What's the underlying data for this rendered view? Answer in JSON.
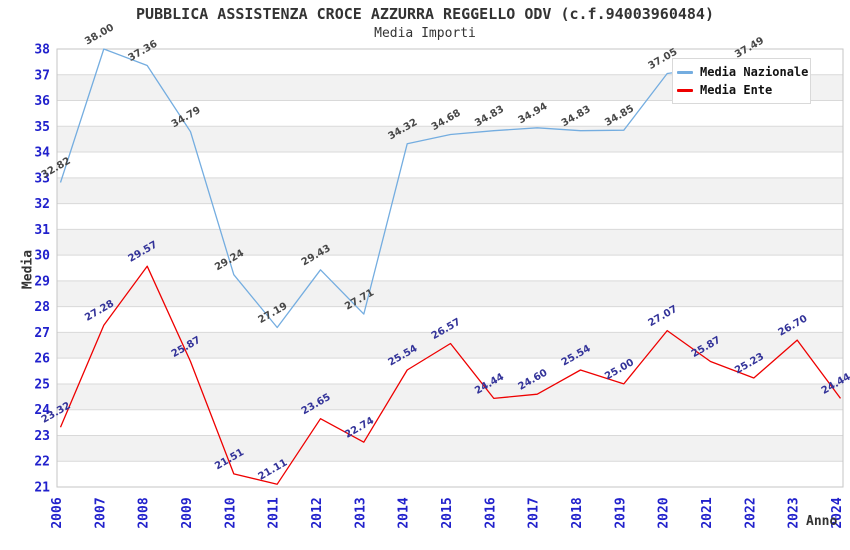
{
  "header": {
    "title": "PUBBLICA ASSISTENZA CROCE AZZURRA REGGELLO ODV (c.f.94003960484)",
    "subtitle": "Media Importi"
  },
  "colors": {
    "axis_tick_label": "#2121cc",
    "grid_line": "#d9d9d9",
    "band_fill": "#f2f2f2",
    "plot_border": "#c6c6c6",
    "axis_title": "#333333",
    "title_text": "#333333",
    "nazionale_line": "#74ade0",
    "ente_line": "#ee0000",
    "nazionale_label": "#474747",
    "ente_label": "#333399",
    "legend_bg": "#ffffff"
  },
  "chart_data": {
    "type": "line",
    "title": "PUBBLICA ASSISTENZA CROCE AZZURRA REGGELLO ODV (c.f.94003960484)",
    "subtitle": "Media Importi",
    "xlabel": "Anno",
    "ylabel": "Media",
    "x": [
      2006,
      2007,
      2008,
      2009,
      2010,
      2011,
      2012,
      2013,
      2014,
      2015,
      2016,
      2017,
      2018,
      2019,
      2020,
      2021,
      2022,
      2023,
      2024
    ],
    "y_ticks": [
      21,
      22,
      23,
      24,
      25,
      26,
      27,
      28,
      29,
      30,
      31,
      32,
      33,
      34,
      35,
      36,
      37,
      38
    ],
    "ylim": [
      21,
      38
    ],
    "grid": "horizontal",
    "background_bands": "alternating gray/white per unit",
    "legend_position": "top-right",
    "series": [
      {
        "name": "Media Nazionale",
        "color": "#74ade0",
        "label_color": "#474747",
        "values": [
          32.82,
          38.0,
          37.36,
          34.79,
          29.24,
          27.19,
          29.43,
          27.71,
          34.32,
          34.68,
          34.83,
          34.94,
          34.83,
          34.85,
          37.05,
          null,
          37.49,
          null,
          null
        ]
      },
      {
        "name": "Media Ente",
        "color": "#ee0000",
        "label_color": "#333399",
        "values": [
          23.32,
          27.28,
          29.57,
          25.87,
          21.51,
          21.11,
          23.65,
          22.74,
          25.54,
          26.57,
          24.44,
          24.6,
          25.54,
          25.0,
          27.07,
          25.87,
          25.23,
          26.7,
          24.44
        ]
      }
    ]
  }
}
